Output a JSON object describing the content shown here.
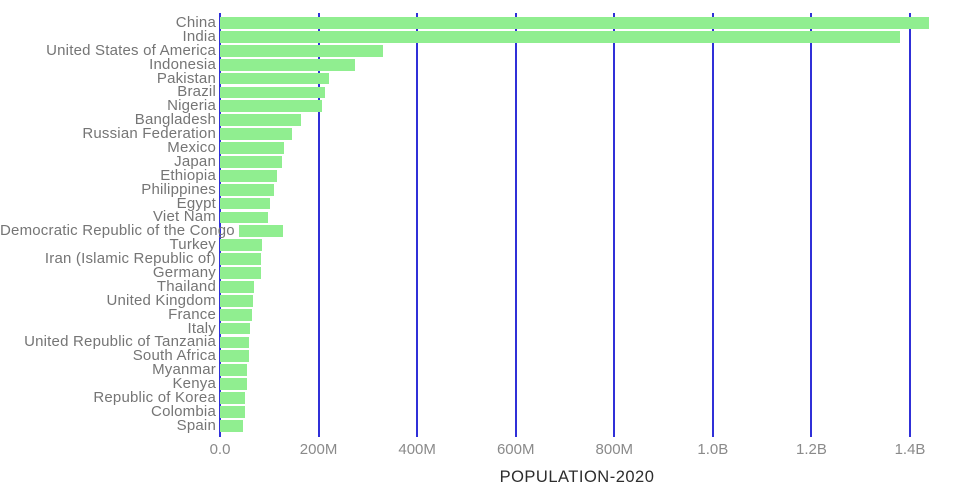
{
  "chart_data": {
    "type": "bar",
    "orientation": "horizontal",
    "title": "",
    "xlabel": "POPULATION-2020",
    "ylabel": "",
    "categories": [
      "China",
      "India",
      "United States of America",
      "Indonesia",
      "Pakistan",
      "Brazil",
      "Nigeria",
      "Bangladesh",
      "Russian Federation",
      "Mexico",
      "Japan",
      "Ethiopia",
      "Philippines",
      "Egypt",
      "Viet Nam",
      "Democratic Republic of the Congo",
      "Turkey",
      "Iran (Islamic Republic of)",
      "Germany",
      "Thailand",
      "United Kingdom",
      "France",
      "Italy",
      "United Republic of Tanzania",
      "South Africa",
      "Myanmar",
      "Kenya",
      "Republic of Korea",
      "Colombia",
      "Spain"
    ],
    "values_millions": [
      1439.3,
      1380.0,
      331.0,
      273.5,
      220.9,
      212.6,
      206.1,
      164.7,
      145.9,
      128.9,
      126.5,
      115.0,
      109.6,
      102.3,
      97.3,
      89.6,
      84.3,
      84.0,
      83.8,
      69.8,
      67.9,
      65.3,
      60.5,
      59.7,
      59.3,
      54.4,
      53.8,
      51.3,
      50.9,
      46.8
    ],
    "x_ticks": [
      {
        "label": "0.0",
        "value_millions": 0
      },
      {
        "label": "200M",
        "value_millions": 200
      },
      {
        "label": "400M",
        "value_millions": 400
      },
      {
        "label": "600M",
        "value_millions": 600
      },
      {
        "label": "800M",
        "value_millions": 800
      },
      {
        "label": "1.0B",
        "value_millions": 1000
      },
      {
        "label": "1.2B",
        "value_millions": 1200
      },
      {
        "label": "1.4B",
        "value_millions": 1400
      }
    ],
    "xlim_millions": [
      0,
      1452
    ],
    "grid": true,
    "legend": false,
    "colors": {
      "bar": "#90ee90",
      "gridline": "#3030d8",
      "category_label": "#757575",
      "tick_label": "#8a8a8a",
      "axis_title": "#2d2d2d",
      "background": "#ffffff"
    }
  }
}
